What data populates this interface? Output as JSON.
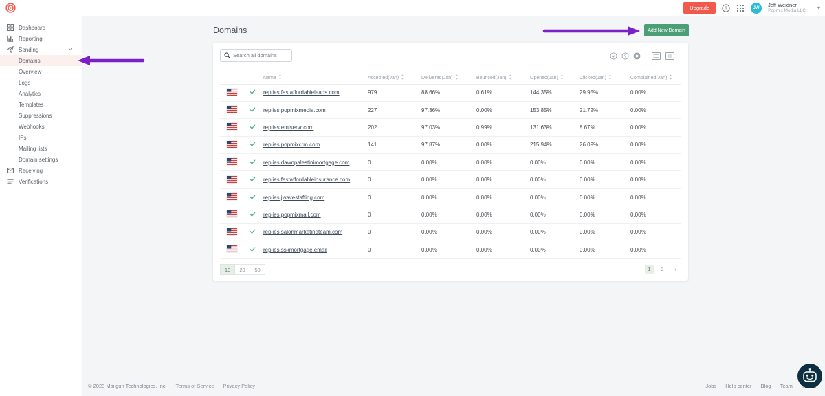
{
  "topbar": {
    "upgrade_label": "Upgrade",
    "user": {
      "initials": "JW",
      "name": "Jeff Weidner",
      "org": "Popmix Media LLC"
    }
  },
  "sidebar": {
    "items": [
      {
        "label": "Dashboard",
        "icon": "dashboard",
        "type": "top"
      },
      {
        "label": "Reporting",
        "icon": "reporting",
        "type": "top"
      },
      {
        "label": "Sending",
        "icon": "sending",
        "type": "top",
        "chevron": true,
        "expanded": true
      },
      {
        "label": "Domains",
        "type": "sub",
        "active": true
      },
      {
        "label": "Overview",
        "type": "sub"
      },
      {
        "label": "Logs",
        "type": "sub"
      },
      {
        "label": "Analytics",
        "type": "sub"
      },
      {
        "label": "Templates",
        "type": "sub"
      },
      {
        "label": "Suppressions",
        "type": "sub"
      },
      {
        "label": "Webhooks",
        "type": "sub"
      },
      {
        "label": "IPs",
        "type": "sub"
      },
      {
        "label": "Mailing lists",
        "type": "sub"
      },
      {
        "label": "Domain settings",
        "type": "sub"
      },
      {
        "label": "Receiving",
        "icon": "receiving",
        "type": "top"
      },
      {
        "label": "Verifications",
        "icon": "verifications",
        "type": "top"
      }
    ]
  },
  "page": {
    "title": "Domains",
    "add_button_label": "Add New Domain",
    "search_placeholder": "Search all domains"
  },
  "table": {
    "columns": [
      "Name",
      "Accepted(Jan)",
      "Delivered(Jan)",
      "Bounced(Jan)",
      "Opened(Jan)",
      "Clicked(Jan)",
      "Complained(Jan)"
    ],
    "rows": [
      {
        "name": "replies.fastaffordableleads.com",
        "accepted": "979",
        "delivered": "88.66%",
        "bounced": "0.61%",
        "opened": "144.35%",
        "clicked": "29.95%",
        "complained": "0.00%"
      },
      {
        "name": "replies.popmixmedia.com",
        "accepted": "227",
        "delivered": "97.36%",
        "bounced": "0.00%",
        "opened": "153.85%",
        "clicked": "21.72%",
        "complained": "0.00%"
      },
      {
        "name": "replies.emlservr.com",
        "accepted": "202",
        "delivered": "97.03%",
        "bounced": "0.99%",
        "opened": "131.63%",
        "clicked": "8.67%",
        "complained": "0.00%"
      },
      {
        "name": "replies.popmixcrm.com",
        "accepted": "141",
        "delivered": "97.87%",
        "bounced": "0.00%",
        "opened": "215.94%",
        "clicked": "26.09%",
        "complained": "0.00%"
      },
      {
        "name": "replies.dawnpalestinimortgage.com",
        "accepted": "0",
        "delivered": "0.00%",
        "bounced": "0.00%",
        "opened": "0.00%",
        "clicked": "0.00%",
        "complained": "0.00%"
      },
      {
        "name": "replies.fastaffordableinsurance.com",
        "accepted": "0",
        "delivered": "0.00%",
        "bounced": "0.00%",
        "opened": "0.00%",
        "clicked": "0.00%",
        "complained": "0.00%"
      },
      {
        "name": "replies.jwavestaffing.com",
        "accepted": "0",
        "delivered": "0.00%",
        "bounced": "0.00%",
        "opened": "0.00%",
        "clicked": "0.00%",
        "complained": "0.00%"
      },
      {
        "name": "replies.popmixmail.com",
        "accepted": "0",
        "delivered": "0.00%",
        "bounced": "0.00%",
        "opened": "0.00%",
        "clicked": "0.00%",
        "complained": "0.00%"
      },
      {
        "name": "replies.salonmarketingteam.com",
        "accepted": "0",
        "delivered": "0.00%",
        "bounced": "0.00%",
        "opened": "0.00%",
        "clicked": "0.00%",
        "complained": "0.00%"
      },
      {
        "name": "replies.sskmortgage.email",
        "accepted": "0",
        "delivered": "0.00%",
        "bounced": "0.00%",
        "opened": "0.00%",
        "clicked": "0.00%",
        "complained": "0.00%"
      }
    ]
  },
  "pagination": {
    "page_sizes": [
      "10",
      "20",
      "50"
    ],
    "selected_size": "10",
    "pages": [
      "1",
      "2"
    ],
    "current_page": "1",
    "next_label": "›"
  },
  "footer": {
    "copyright": "© 2023 Mailgun Technologies, Inc.",
    "links_left": [
      "Terms of Service",
      "Privacy Policy"
    ],
    "links_right": [
      "Jobs",
      "Help center",
      "Blog",
      "Team",
      "Twitter"
    ]
  },
  "colors": {
    "upgrade_red": "#f2594d",
    "avatar_cyan": "#2bbcd4",
    "add_button_green": "#4c9e74",
    "annotation_purple": "#7d1fc9",
    "active_sidebar_pink": "#fcf0ee",
    "chatbot_navy": "#0d2f42",
    "verified_check_green": "#4caf82"
  }
}
